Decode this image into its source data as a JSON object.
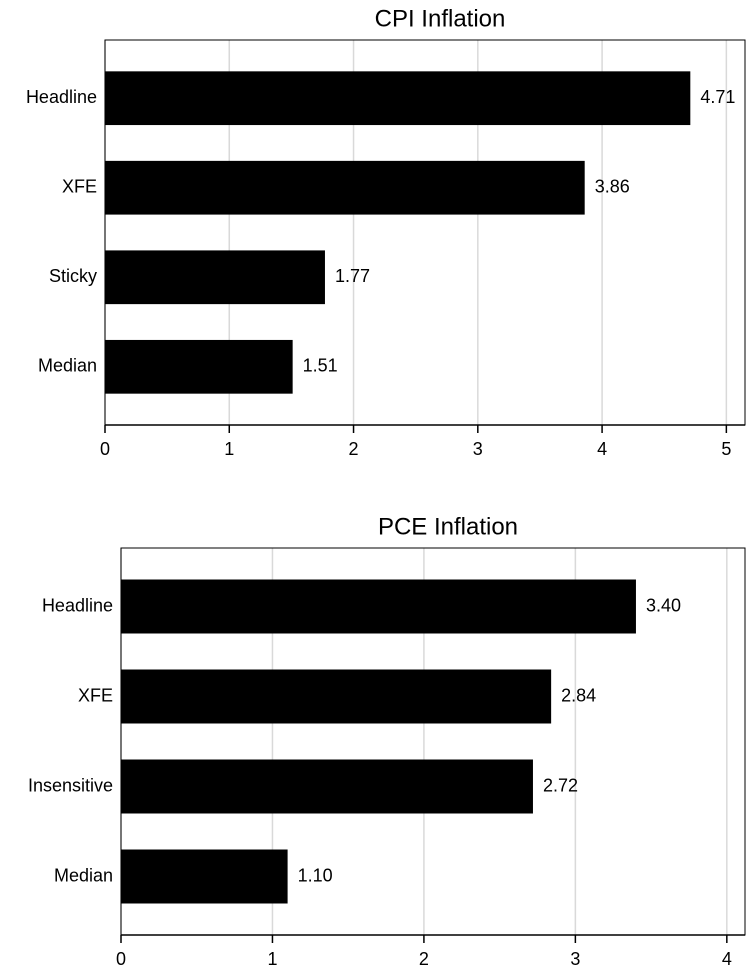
{
  "chart_data": [
    {
      "type": "bar",
      "orientation": "horizontal",
      "title": "CPI Inflation",
      "categories": [
        "Headline",
        "XFE",
        "Sticky",
        "Median"
      ],
      "values": [
        4.71,
        3.86,
        1.77,
        1.51
      ],
      "value_labels": [
        "4.71",
        "3.86",
        "1.77",
        "1.51"
      ],
      "color": "#000000",
      "xlim": [
        0,
        5.15
      ],
      "xticks": [
        0,
        1,
        2,
        3,
        4,
        5
      ],
      "grid": true
    },
    {
      "type": "bar",
      "orientation": "horizontal",
      "title": "PCE Inflation",
      "categories": [
        "Headline",
        "XFE",
        "Insensitive",
        "Median"
      ],
      "values": [
        3.4,
        2.84,
        2.72,
        1.1
      ],
      "value_labels": [
        "3.40",
        "2.84",
        "2.72",
        "1.10"
      ],
      "color": "#000000",
      "xlim": [
        0,
        4.12
      ],
      "xticks": [
        0,
        1,
        2,
        3,
        4
      ],
      "grid": true
    }
  ]
}
